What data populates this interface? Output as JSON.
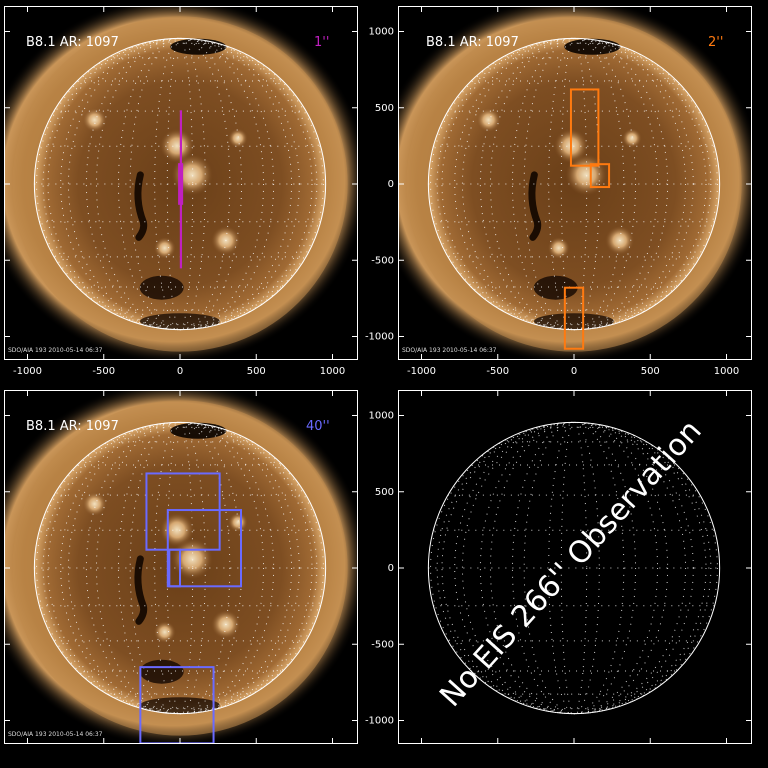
{
  "panels": [
    {
      "id": "p1",
      "has_image": true,
      "label": "B8.1  AR: 1097",
      "slit_label": "1''",
      "slit_color": "#c020c0",
      "footer": "SDO/AIA 193 2010-05-14 06:37",
      "show_x_ticks": true,
      "show_y_ticks": false
    },
    {
      "id": "p2",
      "has_image": true,
      "label": "B8.1  AR: 1097",
      "slit_label": "2''",
      "slit_color": "#ff7a10",
      "footer": "SDO/AIA 193 2010-05-14 06:37",
      "show_x_ticks": true,
      "show_y_ticks": true
    },
    {
      "id": "p3",
      "has_image": true,
      "label": "B8.1  AR: 1097",
      "slit_label": "40''",
      "slit_color": "#6a6aff",
      "footer": "SDO/AIA 193 2010-05-14 06:37",
      "show_x_ticks": false,
      "show_y_ticks": false
    },
    {
      "id": "p4",
      "has_image": false,
      "no_obs_text": "No EIS 266'' Observation",
      "show_x_ticks": false,
      "show_y_ticks": true
    }
  ],
  "axis": {
    "x_ticks": [
      -1000,
      -500,
      0,
      500,
      1000
    ],
    "y_ticks": [
      -1000,
      -500,
      0,
      500,
      1000
    ],
    "units": "arcsec"
  },
  "overlays": {
    "p1": [
      {
        "x0": 2,
        "x1": 8,
        "y0": -550,
        "y1": 480
      },
      {
        "x0": -6,
        "x1": 14,
        "y0": -130,
        "y1": 130
      }
    ],
    "p2": [
      {
        "x0": -20,
        "x1": 160,
        "y0": 120,
        "y1": 620
      },
      {
        "x0": 110,
        "x1": 230,
        "y0": -20,
        "y1": 130
      },
      {
        "x0": -60,
        "x1": 60,
        "y0": -1080,
        "y1": -680
      }
    ],
    "p3": [
      {
        "x0": -220,
        "x1": 260,
        "y0": 120,
        "y1": 620
      },
      {
        "x0": -80,
        "x1": 400,
        "y0": -120,
        "y1": 380
      },
      {
        "x0": -70,
        "x1": 0,
        "y0": -120,
        "y1": 120
      },
      {
        "x0": -260,
        "x1": 220,
        "y0": -1150,
        "y1": -650
      }
    ]
  },
  "colors": {
    "corona": "#b07a3c",
    "disk": "#7a4a1e",
    "limb": "#ffffff",
    "grid": "#ffffff"
  }
}
